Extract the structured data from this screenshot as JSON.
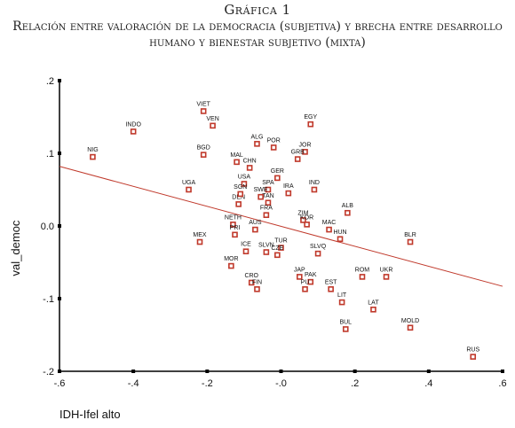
{
  "figure": {
    "label": "Gráfica 1",
    "caption": "Relación entre valoración de la democracia (subjetiva) y brecha entre desarrollo humano y bienestar subjetivo (mixta)"
  },
  "chart_data": {
    "type": "scatter",
    "xlabel": "IDH-Ifel alto",
    "ylabel": "val_democ",
    "xlim": [
      -0.6,
      0.6
    ],
    "ylim": [
      -0.2,
      0.2
    ],
    "x_ticks": [
      -0.6,
      -0.4,
      -0.2,
      0.0,
      0.2,
      0.4,
      0.6
    ],
    "x_tick_labels": [
      "-.6",
      "-.4",
      "-.2",
      "-.0",
      ".2",
      ".4",
      ".6"
    ],
    "y_ticks": [
      0.2,
      0.1,
      0.0,
      -0.1,
      -0.2
    ],
    "y_tick_labels": [
      ".2",
      ".1",
      "0.0",
      "-.1",
      "-.2"
    ],
    "grid": false,
    "marker_color": "#c0392b",
    "fit_line": {
      "color": "#c0392b",
      "x": [
        -0.6,
        0.6
      ],
      "y": [
        0.082,
        -0.083
      ]
    },
    "points": [
      {
        "label": "VIET",
        "x": -0.21,
        "y": 0.158
      },
      {
        "label": "VEN",
        "x": -0.185,
        "y": 0.138
      },
      {
        "label": "INDO",
        "x": -0.4,
        "y": 0.13
      },
      {
        "label": "EGY",
        "x": 0.08,
        "y": 0.14
      },
      {
        "label": "NIG",
        "x": -0.51,
        "y": 0.095
      },
      {
        "label": "BGD",
        "x": -0.21,
        "y": 0.098
      },
      {
        "label": "ALG",
        "x": -0.065,
        "y": 0.113
      },
      {
        "label": "POR",
        "x": -0.02,
        "y": 0.108
      },
      {
        "label": "JOR",
        "x": 0.065,
        "y": 0.102
      },
      {
        "label": "MAL",
        "x": -0.12,
        "y": 0.088
      },
      {
        "label": "CHN",
        "x": -0.085,
        "y": 0.08
      },
      {
        "label": "GRB",
        "x": 0.045,
        "y": 0.092
      },
      {
        "label": "GER",
        "x": -0.01,
        "y": 0.066
      },
      {
        "label": "UGA",
        "x": -0.25,
        "y": 0.05
      },
      {
        "label": "USA",
        "x": -0.1,
        "y": 0.058
      },
      {
        "label": "SPA",
        "x": -0.035,
        "y": 0.05
      },
      {
        "label": "IRA",
        "x": 0.02,
        "y": 0.045
      },
      {
        "label": "IND",
        "x": 0.09,
        "y": 0.05
      },
      {
        "label": "SWE",
        "x": -0.055,
        "y": 0.04
      },
      {
        "label": "TAN",
        "x": -0.035,
        "y": 0.032
      },
      {
        "label": "DEN",
        "x": -0.115,
        "y": 0.03
      },
      {
        "label": "SGN",
        "x": -0.11,
        "y": 0.044
      },
      {
        "label": "FRA",
        "x": -0.04,
        "y": 0.015
      },
      {
        "label": "ZIM",
        "x": 0.06,
        "y": 0.008
      },
      {
        "label": "ALB",
        "x": 0.18,
        "y": 0.018
      },
      {
        "label": "NETH",
        "x": -0.13,
        "y": 0.002
      },
      {
        "label": "AUS",
        "x": -0.07,
        "y": -0.005
      },
      {
        "label": "KOR",
        "x": 0.07,
        "y": 0.002
      },
      {
        "label": "PRI",
        "x": -0.125,
        "y": -0.012
      },
      {
        "label": "MAC",
        "x": 0.13,
        "y": -0.005
      },
      {
        "label": "BLR",
        "x": 0.35,
        "y": -0.022
      },
      {
        "label": "MEX",
        "x": -0.22,
        "y": -0.022
      },
      {
        "label": "HUN",
        "x": 0.16,
        "y": -0.018
      },
      {
        "label": "TUR",
        "x": 0.0,
        "y": -0.03
      },
      {
        "label": "SLVQ",
        "x": 0.1,
        "y": -0.038
      },
      {
        "label": "ICE",
        "x": -0.095,
        "y": -0.035
      },
      {
        "label": "SLVN",
        "x": -0.04,
        "y": -0.036
      },
      {
        "label": "CZE",
        "x": -0.01,
        "y": -0.04
      },
      {
        "label": "MOR",
        "x": -0.135,
        "y": -0.055
      },
      {
        "label": "JAP",
        "x": 0.05,
        "y": -0.07
      },
      {
        "label": "PAK",
        "x": 0.08,
        "y": -0.077
      },
      {
        "label": "EST",
        "x": 0.135,
        "y": -0.087
      },
      {
        "label": "ROM",
        "x": 0.22,
        "y": -0.07
      },
      {
        "label": "UKR",
        "x": 0.285,
        "y": -0.07
      },
      {
        "label": "CRO",
        "x": -0.08,
        "y": -0.078
      },
      {
        "label": "FIN",
        "x": -0.065,
        "y": -0.087
      },
      {
        "label": "PU",
        "x": 0.065,
        "y": -0.087
      },
      {
        "label": "LIT",
        "x": 0.165,
        "y": -0.105
      },
      {
        "label": "LAT",
        "x": 0.25,
        "y": -0.115
      },
      {
        "label": "BUL",
        "x": 0.175,
        "y": -0.142
      },
      {
        "label": "MOLD",
        "x": 0.35,
        "y": -0.14
      },
      {
        "label": "RUS",
        "x": 0.52,
        "y": -0.18
      }
    ]
  }
}
